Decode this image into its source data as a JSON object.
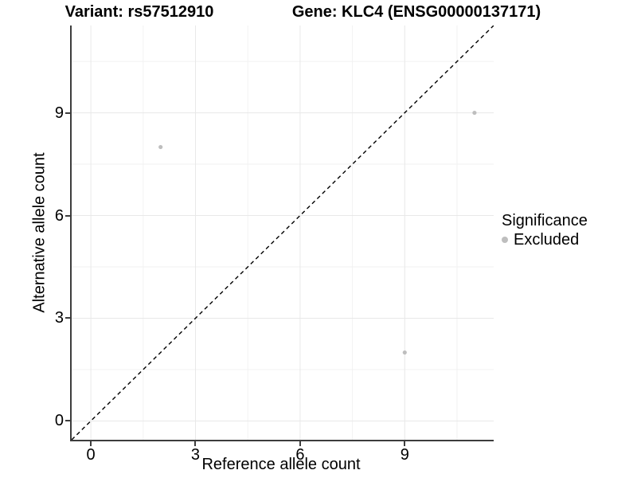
{
  "chart_data": {
    "type": "scatter",
    "titles": [
      "Variant: rs57512910",
      "Gene: KLC4 (ENSG00000137171)"
    ],
    "xlabel": "Reference allele count",
    "ylabel": "Alternative allele count",
    "xlim": [
      -0.55,
      11.55
    ],
    "ylim": [
      -0.55,
      11.55
    ],
    "x_ticks": [
      0,
      3,
      6,
      9
    ],
    "y_ticks": [
      0,
      3,
      6,
      9
    ],
    "x_minor_ticks": [
      1.5,
      4.5,
      7.5,
      10.5
    ],
    "y_minor_ticks": [
      1.5,
      4.5,
      7.5,
      10.5
    ],
    "grid": "major and minor gridlines, no panel border, left/bottom axis lines",
    "identity_line": {
      "equation": "y = x",
      "style": "dashed",
      "color": "#000000"
    },
    "series": [
      {
        "name": "Excluded",
        "color": "#bebebe",
        "points": [
          [
            2,
            8
          ],
          [
            9,
            2
          ],
          [
            11,
            9
          ]
        ]
      }
    ],
    "legend": {
      "position": "right",
      "title": "Significance",
      "entries": [
        {
          "label": "Excluded",
          "color": "#bebebe"
        }
      ]
    }
  },
  "colors": {
    "background": "#ffffff",
    "grid_major": "#e8e8e8",
    "grid_minor": "#f2f2f2",
    "axis_line": "#3d3d3d",
    "tick_mark": "#3d3d3d",
    "text": "#000000",
    "point": "#bebebe",
    "identity_line": "#000000"
  }
}
